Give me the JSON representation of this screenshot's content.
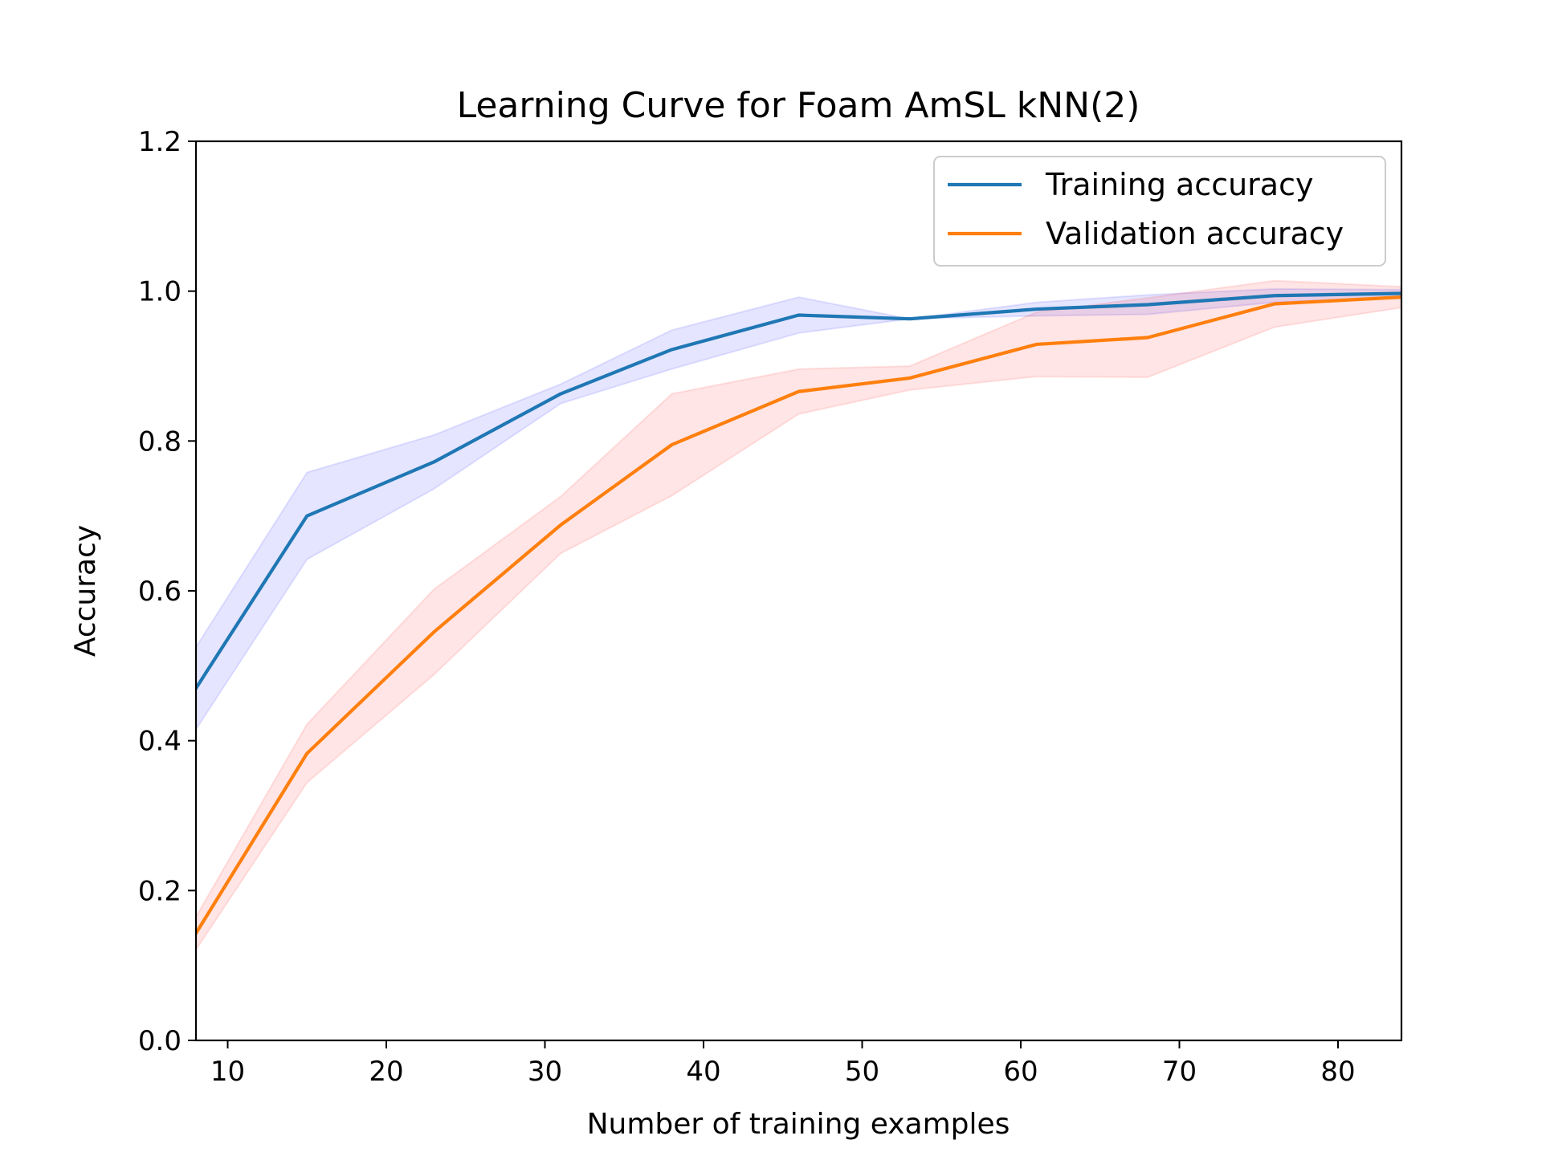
{
  "chart_data": {
    "type": "line",
    "title": "Learning Curve for Foam AmSL kNN(2)",
    "xlabel": "Number of training examples",
    "ylabel": "Accuracy",
    "xlim": [
      8,
      84
    ],
    "ylim": [
      0.0,
      1.2
    ],
    "xticks": [
      10,
      20,
      30,
      40,
      50,
      60,
      70,
      80
    ],
    "yticks": [
      0.0,
      0.2,
      0.4,
      0.6,
      0.8,
      1.0,
      1.2
    ],
    "xtick_labels": [
      "10",
      "20",
      "30",
      "40",
      "50",
      "60",
      "70",
      "80"
    ],
    "ytick_labels": [
      "0.0",
      "0.2",
      "0.4",
      "0.6",
      "0.8",
      "1.0",
      "1.2"
    ],
    "grid": false,
    "legend_position": "top-right",
    "x": [
      8,
      15,
      23,
      31,
      38,
      46,
      53,
      61,
      68,
      76,
      84
    ],
    "series": [
      {
        "name": "Training accuracy",
        "color": "#1f77b4",
        "band_color": "#0000ff",
        "values": [
          0.47,
          0.7,
          0.772,
          0.863,
          0.922,
          0.968,
          0.963,
          0.976,
          0.982,
          0.994,
          0.997
        ],
        "upper": [
          0.525,
          0.758,
          0.808,
          0.876,
          0.948,
          0.992,
          0.963,
          0.985,
          0.995,
          1.003,
          1.002
        ],
        "lower": [
          0.415,
          0.642,
          0.736,
          0.85,
          0.896,
          0.944,
          0.963,
          0.967,
          0.969,
          0.985,
          0.992
        ]
      },
      {
        "name": "Validation accuracy",
        "color": "#ff7f0e",
        "band_color": "#ff0000",
        "values": [
          0.143,
          0.383,
          0.545,
          0.688,
          0.795,
          0.866,
          0.884,
          0.929,
          0.938,
          0.983,
          0.992
        ],
        "upper": [
          0.165,
          0.422,
          0.602,
          0.726,
          0.863,
          0.896,
          0.9,
          0.972,
          0.991,
          1.014,
          1.006
        ],
        "lower": [
          0.121,
          0.344,
          0.488,
          0.65,
          0.727,
          0.836,
          0.868,
          0.886,
          0.885,
          0.952,
          0.978
        ]
      }
    ]
  }
}
